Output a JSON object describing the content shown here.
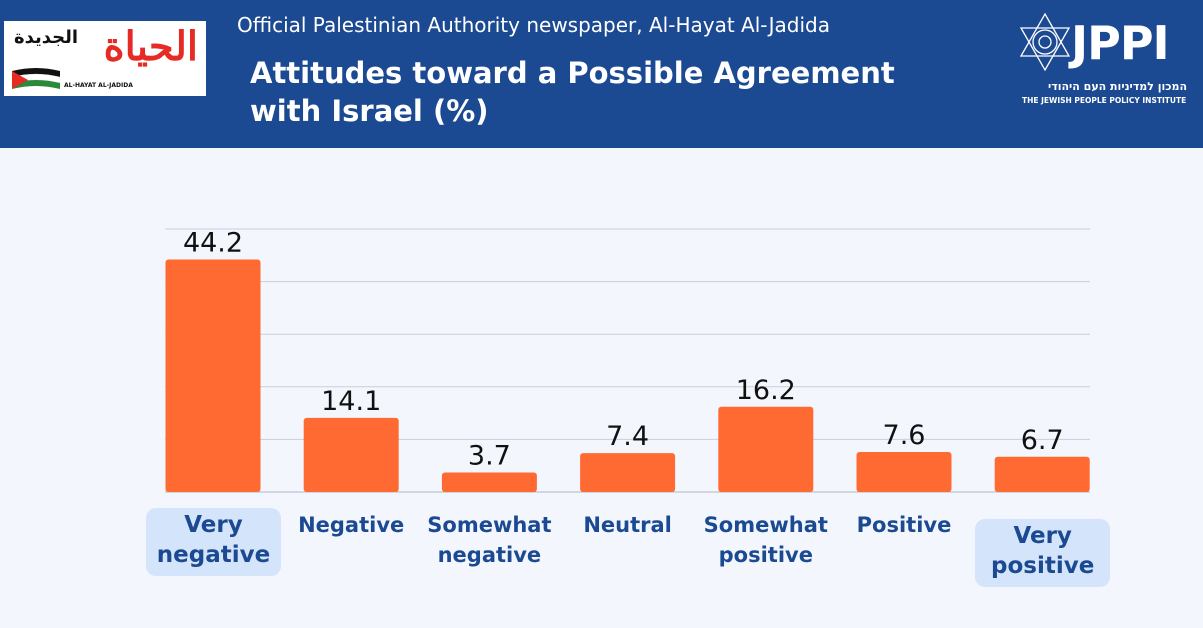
{
  "header": {
    "subtitle": "Official Palestinian Authority newspaper, Al-Hayat Al-Jadida",
    "title": "Attitudes toward a Possible Agreement with Israel (%)",
    "newspaper_logo": {
      "arabic": "الحياة",
      "arabic_small": "الجديدة",
      "latin": "AL-HAYAT AL-JADIDA"
    },
    "jppi_logo": {
      "name": "JPPI",
      "hebrew": "המכון למדיניות העם היהודי",
      "english": "THE JEWISH PEOPLE POLICY INSTITUTE"
    }
  },
  "colors": {
    "header_bg": "#1c4a92",
    "bar": "#ff6a33",
    "label": "#1c4a92",
    "highlight": "#d3e4fb"
  },
  "chart_data": {
    "type": "bar",
    "title": "Attitudes toward a Possible Agreement with Israel (%)",
    "categories": [
      "Very negative",
      "Negative",
      "Somewhat negative",
      "Neutral",
      "Somewhat positive",
      "Positive",
      "Very positive"
    ],
    "values": [
      44.2,
      14.1,
      3.7,
      7.4,
      16.2,
      7.6,
      6.7
    ],
    "value_labels": [
      "44.2",
      "14.1",
      "3.7",
      "7.4",
      "16.2",
      "7.6",
      "6.7"
    ],
    "highlighted": [
      "Very negative",
      "Very positive"
    ],
    "ylim": [
      0,
      50
    ],
    "grid": true,
    "xlabel": "",
    "ylabel": ""
  }
}
